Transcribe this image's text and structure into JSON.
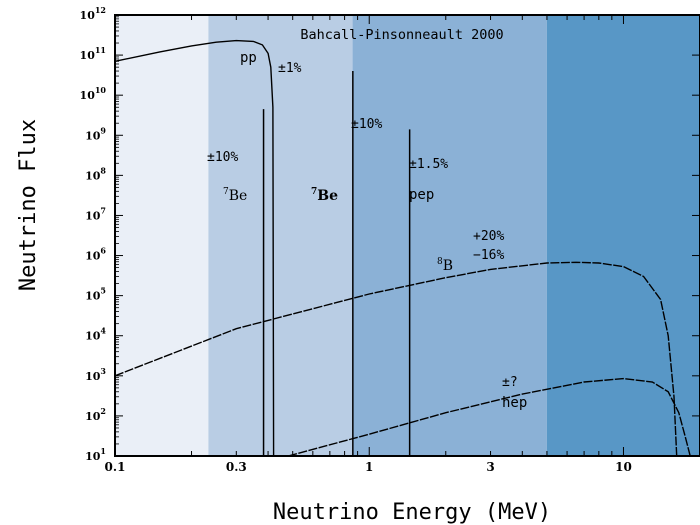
{
  "chart_data": {
    "type": "line",
    "title": "Bahcall-Pinsonneault 2000",
    "xlabel": "Neutrino Energy (MeV)",
    "ylabel": "Neutrino Flux",
    "x_scale": "log",
    "y_scale": "log",
    "xlim": [
      0.1,
      20
    ],
    "ylim": [
      10,
      1000000000000
    ],
    "grid": false,
    "legend": "none",
    "x_ticks": [
      {
        "value": 0.1,
        "label": "0.1"
      },
      {
        "value": 0.3,
        "label": "0.3"
      },
      {
        "value": 1,
        "label": "1"
      },
      {
        "value": 3,
        "label": "3"
      },
      {
        "value": 10,
        "label": "10"
      }
    ],
    "y_ticks": [
      {
        "value": 10,
        "base": "10",
        "exp": "1"
      },
      {
        "value": 100,
        "base": "10",
        "exp": "2"
      },
      {
        "value": 1000,
        "base": "10",
        "exp": "3"
      },
      {
        "value": 10000,
        "base": "10",
        "exp": "4"
      },
      {
        "value": 100000,
        "base": "10",
        "exp": "5"
      },
      {
        "value": 1000000,
        "base": "10",
        "exp": "6"
      },
      {
        "value": 10000000,
        "base": "10",
        "exp": "7"
      },
      {
        "value": 100000000,
        "base": "10",
        "exp": "8"
      },
      {
        "value": 1000000000,
        "base": "10",
        "exp": "9"
      },
      {
        "value": 10000000000,
        "base": "10",
        "exp": "10"
      },
      {
        "value": 100000000000,
        "base": "10",
        "exp": "11"
      },
      {
        "value": 1000000000000,
        "base": "10",
        "exp": "12"
      }
    ],
    "bands": [
      {
        "x0": 0.1,
        "x1": 0.233,
        "color": "#eaeff7"
      },
      {
        "x0": 0.233,
        "x1": 0.86,
        "color": "#b9cde4"
      },
      {
        "x0": 0.86,
        "x1": 5.0,
        "color": "#8bb1d6"
      },
      {
        "x0": 5.0,
        "x1": 20,
        "color": "#5897c6"
      }
    ],
    "series": [
      {
        "id": "pp",
        "style": "solid",
        "x": [
          0.1,
          0.15,
          0.2,
          0.25,
          0.3,
          0.35,
          0.38,
          0.4,
          0.41,
          0.418,
          0.4205
        ],
        "y": [
          70000000000,
          120000000000,
          170000000000,
          210000000000,
          230000000000,
          220000000000,
          180000000000,
          110000000000,
          50000000000,
          5000000000,
          10
        ]
      },
      {
        "id": "B8",
        "style": "dashed",
        "x": [
          0.1,
          0.3,
          1,
          2,
          3,
          5,
          6.5,
          8,
          10,
          12,
          14,
          15,
          15.8,
          16.2
        ],
        "y": [
          1000,
          15000,
          110000,
          280000,
          450000,
          650000,
          680000,
          650000,
          530000,
          300000,
          80000,
          10000,
          300,
          10
        ]
      },
      {
        "id": "hep",
        "style": "dashed",
        "x": [
          0.48,
          1,
          2,
          4,
          7,
          10,
          13,
          15,
          16.5,
          17.5,
          18.3
        ],
        "y": [
          10,
          35,
          120,
          350,
          700,
          850,
          700,
          400,
          120,
          30,
          10
        ]
      }
    ],
    "lines": [
      {
        "id": "Be7-low",
        "x": 0.384,
        "y": 4500000000
      },
      {
        "id": "Be7-high",
        "x": 0.862,
        "y": 40000000000
      },
      {
        "id": "pep",
        "x": 1.442,
        "y": 1400000000
      }
    ],
    "annotations": {
      "pp_name": "pp",
      "pp_unc": "±1%",
      "be7_low_unc": "±10%",
      "be7_low_sup": "7",
      "be7_low_name": "Be",
      "be7_high_sup": "7",
      "be7_high_name": "Be",
      "be7_high_unc": "±10%",
      "pep_unc": "±1.5%",
      "pep_name": "pep",
      "b8_sup": "8",
      "b8_name": "B",
      "b8_unc_plus": "+20%",
      "b8_unc_minus": "−16%",
      "hep_unc": "±?",
      "hep_name": "hep"
    }
  }
}
